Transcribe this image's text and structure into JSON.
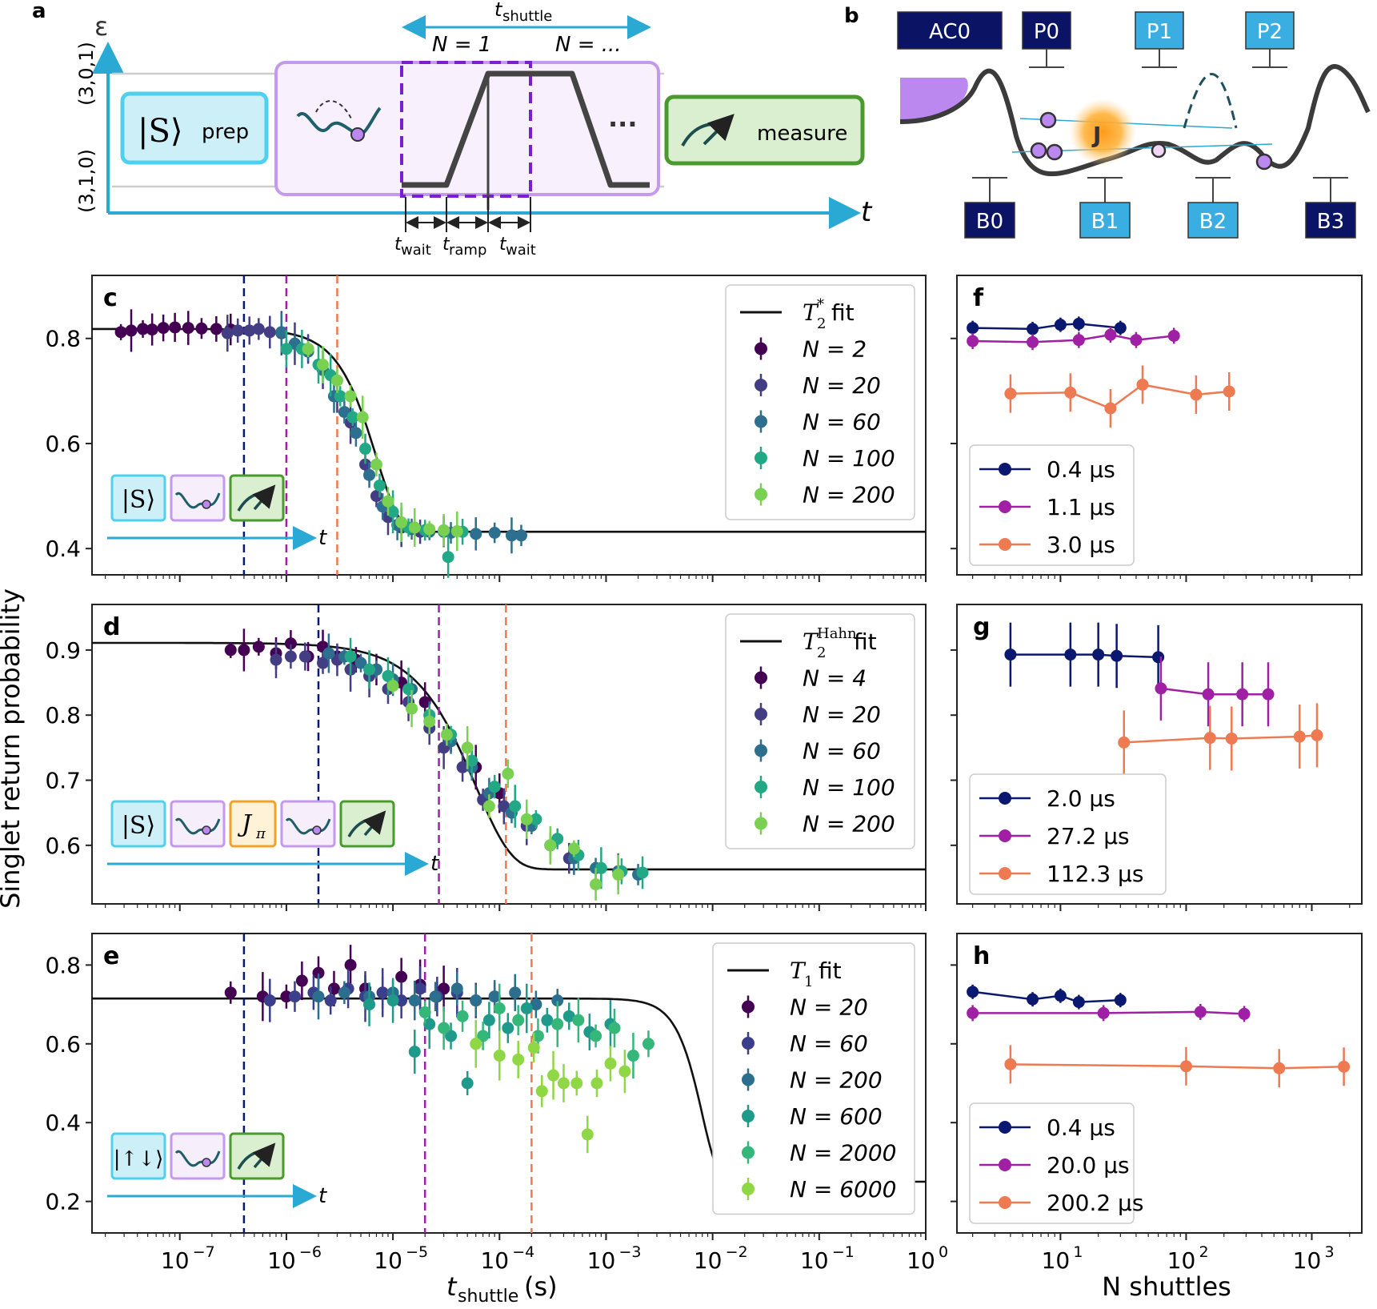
{
  "colors": {
    "cyan": "#29a9d3",
    "lightcyan": "#cdeff8",
    "purple": "#c39aed",
    "lightpurple": "#f6eefb",
    "dashpurple": "#7a1fd0",
    "green": "#4a9a2e",
    "lightgreen": "#d9efcf",
    "navy": "#0b1870",
    "magenta": "#a020a5",
    "orange": "#ee7a52",
    "darkgray": "#3b3b3b",
    "gatelight": "#3aaee0",
    "gatedark": "#0b1464",
    "jglow": "#ffb23a"
  },
  "panel_a": {
    "label": "a",
    "y_axis": "ε",
    "t_axis": "t",
    "state_high": "(3,0,1)",
    "state_low": "(3,1,0)",
    "prep_ket": "|S⟩",
    "prep_word": "prep",
    "measure_word": "measure",
    "t_shuttle_main": "t",
    "t_shuttle_sub": "shuttle",
    "n1_label": "N = 1",
    "nmany_label": "N = ...",
    "dots": "···",
    "wait_main": "t",
    "wait_sub": "wait",
    "ramp_main": "t",
    "ramp_sub": "ramp"
  },
  "panel_b": {
    "label": "b",
    "top_gates": [
      "AC0",
      "P0",
      "P1",
      "P2"
    ],
    "bottom_gates": [
      "B0",
      "B1",
      "B2",
      "B3"
    ],
    "j_label": "J"
  },
  "shared": {
    "ylabel": "Singlet return probability",
    "xlabel_main": "t",
    "xlabel_sub": "shuttle",
    "xlabel_unit": " (s)",
    "xlabel_right": "N shuttles",
    "x_ticks_left": [
      "10",
      "10",
      "10",
      "10",
      "10",
      "10",
      "10",
      "10"
    ],
    "x_ticks_left_exp": [
      "−7",
      "−6",
      "−5",
      "−4",
      "−3",
      "−2",
      "−1",
      "0"
    ],
    "x_ticks_right": [
      "10",
      "10",
      "10"
    ],
    "x_ticks_right_exp": [
      "1",
      "2",
      "3"
    ],
    "seq_ket_singlet": "|S⟩",
    "seq_ket_updown": "|↑↓⟩",
    "seq_jpi": "J",
    "seq_jpi_sub": "π",
    "seq_t": "t"
  },
  "chart_data": [
    {
      "panel": "c",
      "type": "scatter",
      "xscale": "log",
      "xlim": [
        1.5e-08,
        1.0
      ],
      "ylim": [
        0.35,
        0.92
      ],
      "yticks": [
        0.4,
        0.6,
        0.8
      ],
      "ytick_labels": [
        "0.4",
        "0.6",
        "0.8"
      ],
      "fit": {
        "label_main": "T",
        "label_sub": "2",
        "label_sup": "*",
        "label_tail": " fit",
        "base": 0.432,
        "amp": 0.386,
        "tau": 7e-06,
        "power": 2
      },
      "vlines": [
        4e-07,
        1e-06,
        3e-06
      ],
      "series": [
        {
          "name": "N = 2",
          "x": [
            2.8e-08,
            3.5e-08,
            4.5e-08,
            5.5e-08,
            7e-08,
            9e-08,
            1.2e-07,
            1.6e-07,
            2.2e-07,
            3e-07
          ],
          "y": [
            0.812,
            0.815,
            0.818,
            0.817,
            0.82,
            0.821,
            0.82,
            0.819,
            0.818,
            0.817
          ]
        },
        {
          "name": "N = 20",
          "x": [
            2.8e-07,
            3.5e-07,
            4.5e-07,
            5.5e-07,
            7e-07,
            9e-07,
            1.2e-06,
            1.6e-06,
            2.2e-06,
            3e-06,
            4e-06,
            5.5e-06,
            7e-06,
            9e-06,
            1.2e-05,
            1.8e-05,
            3e-05
          ],
          "y": [
            0.81,
            0.815,
            0.815,
            0.818,
            0.812,
            0.81,
            0.79,
            0.78,
            0.74,
            0.69,
            0.64,
            0.56,
            0.5,
            0.46,
            0.44,
            0.432,
            0.432
          ]
        },
        {
          "name": "N = 60",
          "x": [
            9e-07,
            1.2e-06,
            1.6e-06,
            2.2e-06,
            2.8e-06,
            3.5e-06,
            4.5e-06,
            6e-06,
            8e-06,
            1.1e-05,
            1.5e-05,
            2.2e-05,
            3.5e-05,
            6e-05,
            9e-05,
            0.00013,
            0.00016
          ],
          "y": [
            0.812,
            0.79,
            0.775,
            0.74,
            0.69,
            0.66,
            0.62,
            0.54,
            0.48,
            0.445,
            0.437,
            0.432,
            0.43,
            0.428,
            0.43,
            0.425,
            0.425
          ]
        },
        {
          "name": "N = 100",
          "x": [
            1e-06,
            1.4e-06,
            2e-06,
            2.6e-06,
            3.2e-06,
            4.2e-06,
            5.5e-06,
            7.5e-06,
            1e-05,
            1.4e-05,
            2e-05,
            3e-05,
            3.3e-05,
            4.5e-05
          ],
          "y": [
            0.78,
            0.78,
            0.75,
            0.73,
            0.69,
            0.65,
            0.59,
            0.52,
            0.47,
            0.44,
            0.435,
            0.433,
            0.384,
            0.432
          ]
        },
        {
          "name": "N = 200",
          "x": [
            1.6e-06,
            2.2e-06,
            3e-06,
            4e-06,
            5.2e-06,
            7e-06,
            9e-06,
            1.2e-05,
            1.6e-05,
            2.2e-05,
            3e-05,
            4e-05
          ],
          "y": [
            0.78,
            0.75,
            0.72,
            0.69,
            0.65,
            0.56,
            0.49,
            0.45,
            0.44,
            0.437,
            0.435,
            0.433
          ]
        }
      ],
      "panel_right": {
        "label": "f",
        "xlim": [
          1.5,
          2500
        ],
        "ylim": [
          0.35,
          0.92
        ],
        "series": [
          {
            "name": "0.4 μs",
            "x": [
              2,
              6,
              10,
              14,
              30
            ],
            "y": [
              0.82,
              0.818,
              0.826,
              0.828,
              0.82
            ]
          },
          {
            "name": "1.1 μs",
            "x": [
              2,
              6,
              14,
              25,
              40,
              80
            ],
            "y": [
              0.795,
              0.793,
              0.797,
              0.807,
              0.797,
              0.805
            ]
          },
          {
            "name": "3.0 μs",
            "x": [
              4,
              12,
              25,
              45,
              120,
              220
            ],
            "y": [
              0.695,
              0.697,
              0.667,
              0.712,
              0.693,
              0.699
            ]
          }
        ]
      }
    },
    {
      "panel": "d",
      "type": "scatter",
      "xscale": "log",
      "xlim": [
        1.5e-08,
        1.0
      ],
      "ylim": [
        0.51,
        0.97
      ],
      "yticks": [
        0.6,
        0.7,
        0.8,
        0.9
      ],
      "ytick_labels": [
        "0.6",
        "0.7",
        "0.8",
        "0.9"
      ],
      "fit": {
        "label_main": "T",
        "label_sub": "2",
        "label_sup": "Hahn",
        "label_tail": " fit",
        "base": 0.563,
        "amp": 0.348,
        "tau": 6e-05,
        "power": 1.3
      },
      "vlines": [
        2e-06,
        2.7e-05,
        0.000115
      ],
      "series": [
        {
          "name": "N = 4",
          "x": [
            3e-07,
            4e-07,
            5.5e-07,
            8e-07,
            1.1e-06,
            1.6e-06,
            2.2e-06,
            3e-06,
            4.5e-06,
            7e-06,
            1.2e-05,
            2e-05,
            3.5e-05,
            6e-05,
            0.0001
          ],
          "y": [
            0.9,
            0.9,
            0.905,
            0.895,
            0.91,
            0.89,
            0.905,
            0.89,
            0.885,
            0.87,
            0.85,
            0.82,
            0.76,
            0.72,
            0.68
          ]
        },
        {
          "name": "N = 20",
          "x": [
            8e-07,
            1.1e-06,
            1.5e-06,
            2.2e-06,
            3e-06,
            4e-06,
            6e-06,
            9e-06,
            1.4e-05,
            2.2e-05,
            3e-05,
            4.5e-05,
            7e-05,
            0.00011,
            0.00018,
            0.0003,
            0.00045
          ],
          "y": [
            0.885,
            0.89,
            0.89,
            0.88,
            0.885,
            0.87,
            0.86,
            0.84,
            0.82,
            0.78,
            0.75,
            0.72,
            0.67,
            0.66,
            0.63,
            0.6,
            0.58
          ]
        },
        {
          "name": "N = 60",
          "x": [
            2.5e-06,
            3.5e-06,
            5e-06,
            7e-06,
            1e-05,
            1.5e-05,
            2.2e-05,
            3.5e-05,
            5.5e-05,
            8e-05,
            0.00013,
            0.0002,
            0.0003,
            0.0005,
            0.0008,
            0.0013,
            0.002
          ],
          "y": [
            0.895,
            0.89,
            0.88,
            0.87,
            0.855,
            0.84,
            0.8,
            0.76,
            0.72,
            0.68,
            0.65,
            0.63,
            0.6,
            0.58,
            0.565,
            0.56,
            0.555
          ]
        },
        {
          "name": "N = 100",
          "x": [
            4e-06,
            6e-06,
            9e-06,
            1.4e-05,
            2.2e-05,
            3.5e-05,
            5.5e-05,
            9e-05,
            0.00014,
            0.00022,
            0.00035,
            0.00055,
            0.0009,
            0.0014,
            0.0022
          ],
          "y": [
            0.89,
            0.87,
            0.86,
            0.84,
            0.8,
            0.77,
            0.73,
            0.69,
            0.66,
            0.64,
            0.61,
            0.585,
            0.565,
            0.56,
            0.558
          ]
        },
        {
          "name": "N = 200",
          "x": [
            1e-05,
            1.5e-05,
            2.2e-05,
            3.2e-05,
            5e-05,
            8e-05,
            0.00012,
            0.00018,
            0.0003,
            0.0005,
            0.0008,
            0.0013
          ],
          "y": [
            0.845,
            0.81,
            0.79,
            0.77,
            0.75,
            0.66,
            0.71,
            0.64,
            0.6,
            0.595,
            0.54,
            0.555
          ]
        }
      ],
      "panel_right": {
        "label": "g",
        "xlim": [
          1.5,
          2500
        ],
        "ylim": [
          0.51,
          0.97
        ],
        "series": [
          {
            "name": "2.0 μs",
            "x": [
              4,
              12,
              20,
              28,
              60
            ],
            "y": [
              0.893,
              0.893,
              0.893,
              0.891,
              0.889
            ]
          },
          {
            "name": "27.2 μs",
            "x": [
              63,
              150,
              280,
              450
            ],
            "y": [
              0.841,
              0.832,
              0.832,
              0.832
            ]
          },
          {
            "name": "112.3 μs",
            "x": [
              32,
              155,
              230,
              800,
              1100
            ],
            "y": [
              0.758,
              0.765,
              0.764,
              0.767,
              0.769
            ]
          }
        ]
      }
    },
    {
      "panel": "e",
      "type": "scatter",
      "xscale": "log",
      "xlim": [
        1.5e-08,
        1.0
      ],
      "ylim": [
        0.12,
        0.88
      ],
      "yticks": [
        0.2,
        0.4,
        0.6,
        0.8
      ],
      "ytick_labels": [
        "0.2",
        "0.4",
        "0.6",
        "0.8"
      ],
      "fit": {
        "label_main": "T",
        "label_sub": "1",
        "label_sup": "",
        "label_tail": " fit",
        "base": 0.25,
        "amp": 0.465,
        "tau": 0.008,
        "power": 3
      },
      "vlines": [
        4e-07,
        2e-05,
        0.0002
      ],
      "series": [
        {
          "name": "N = 20",
          "x": [
            3e-07,
            6e-07,
            1e-06,
            1.4e-06,
            2e-06,
            2.8e-06,
            4e-06,
            5.5e-06,
            8e-06,
            1.2e-05,
            1.8e-05,
            3e-05
          ],
          "y": [
            0.73,
            0.72,
            0.72,
            0.76,
            0.78,
            0.74,
            0.8,
            0.74,
            0.73,
            0.77,
            0.75,
            0.74
          ]
        },
        {
          "name": "N = 60",
          "x": [
            7e-07,
            1.2e-06,
            1.8e-06,
            2.6e-06,
            3.8e-06,
            5.5e-06,
            8e-06,
            1.2e-05,
            1.8e-05,
            2.6e-05,
            4e-05,
            6e-05,
            9e-05
          ],
          "y": [
            0.71,
            0.72,
            0.73,
            0.71,
            0.74,
            0.72,
            0.73,
            0.71,
            0.74,
            0.72,
            0.73,
            0.71,
            0.72
          ]
        },
        {
          "name": "N = 200",
          "x": [
            2e-06,
            3.5e-06,
            6e-06,
            1e-05,
            1.6e-05,
            2.5e-05,
            4e-05,
            6e-05,
            9e-05,
            0.00014,
            0.00022,
            0.00035
          ],
          "y": [
            0.72,
            0.73,
            0.72,
            0.73,
            0.71,
            0.72,
            0.74,
            0.71,
            0.72,
            0.73,
            0.7,
            0.71
          ]
        },
        {
          "name": "N = 600",
          "x": [
            6e-06,
            1e-05,
            1.6e-05,
            2.2e-05,
            3.5e-05,
            5e-05,
            8e-05,
            0.00012,
            0.00018,
            0.00028,
            0.00045,
            0.0007,
            0.0011
          ],
          "y": [
            0.7,
            0.71,
            0.58,
            0.65,
            0.62,
            0.5,
            0.66,
            0.64,
            0.69,
            0.66,
            0.67,
            0.63,
            0.65
          ]
        },
        {
          "name": "N = 2000",
          "x": [
            2e-05,
            3e-05,
            4.5e-05,
            7e-05,
            0.0001,
            0.00015,
            0.00023,
            0.00035,
            0.00055,
            0.0008,
            0.0012,
            0.0018,
            0.0025
          ],
          "y": [
            0.68,
            0.64,
            0.67,
            0.62,
            0.69,
            0.66,
            0.62,
            0.65,
            0.66,
            0.62,
            0.64,
            0.57,
            0.6
          ]
        },
        {
          "name": "N = 6000",
          "x": [
            6e-05,
            0.0001,
            0.00015,
            0.00021,
            0.00025,
            0.00032,
            0.0004,
            0.00053,
            0.00067,
            0.00082,
            0.0011,
            0.0015
          ],
          "y": [
            0.6,
            0.57,
            0.56,
            0.59,
            0.48,
            0.52,
            0.5,
            0.5,
            0.37,
            0.5,
            0.55,
            0.53
          ]
        }
      ],
      "panel_right": {
        "label": "h",
        "xlim": [
          1.5,
          2500
        ],
        "ylim": [
          0.12,
          0.88
        ],
        "series": [
          {
            "name": "0.4 μs",
            "x": [
              2,
              6,
              10,
              14,
              30
            ],
            "y": [
              0.732,
              0.713,
              0.722,
              0.706,
              0.711
            ]
          },
          {
            "name": "20.0 μs",
            "x": [
              2,
              22,
              130,
              290
            ],
            "y": [
              0.678,
              0.678,
              0.681,
              0.676
            ]
          },
          {
            "name": "200.2 μs",
            "x": [
              4,
              100,
              550,
              1800
            ],
            "y": [
              0.548,
              0.543,
              0.538,
              0.542
            ]
          }
        ]
      }
    }
  ]
}
